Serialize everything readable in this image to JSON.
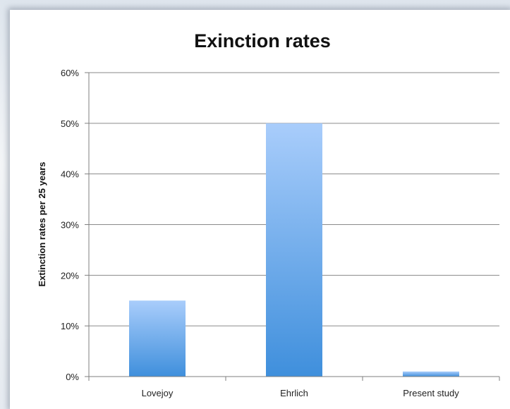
{
  "chart_data": {
    "type": "bar",
    "title": "Exinction rates",
    "ylabel": "Extinction rates per 25 years",
    "xlabel": "",
    "categories": [
      "Lovejoy",
      "Ehrlich",
      "Present study"
    ],
    "values": [
      15,
      50,
      1
    ],
    "ylim": [
      0,
      60
    ],
    "yticks": [
      "0%",
      "10%",
      "20%",
      "30%",
      "40%",
      "50%",
      "60%"
    ],
    "grid": true,
    "legend": "none",
    "colors": {
      "bar_top": "#a9cdfb",
      "bar_bottom": "#3f8fdc",
      "grid": "#8a8a8a",
      "axis": "#7f7f7f"
    }
  }
}
